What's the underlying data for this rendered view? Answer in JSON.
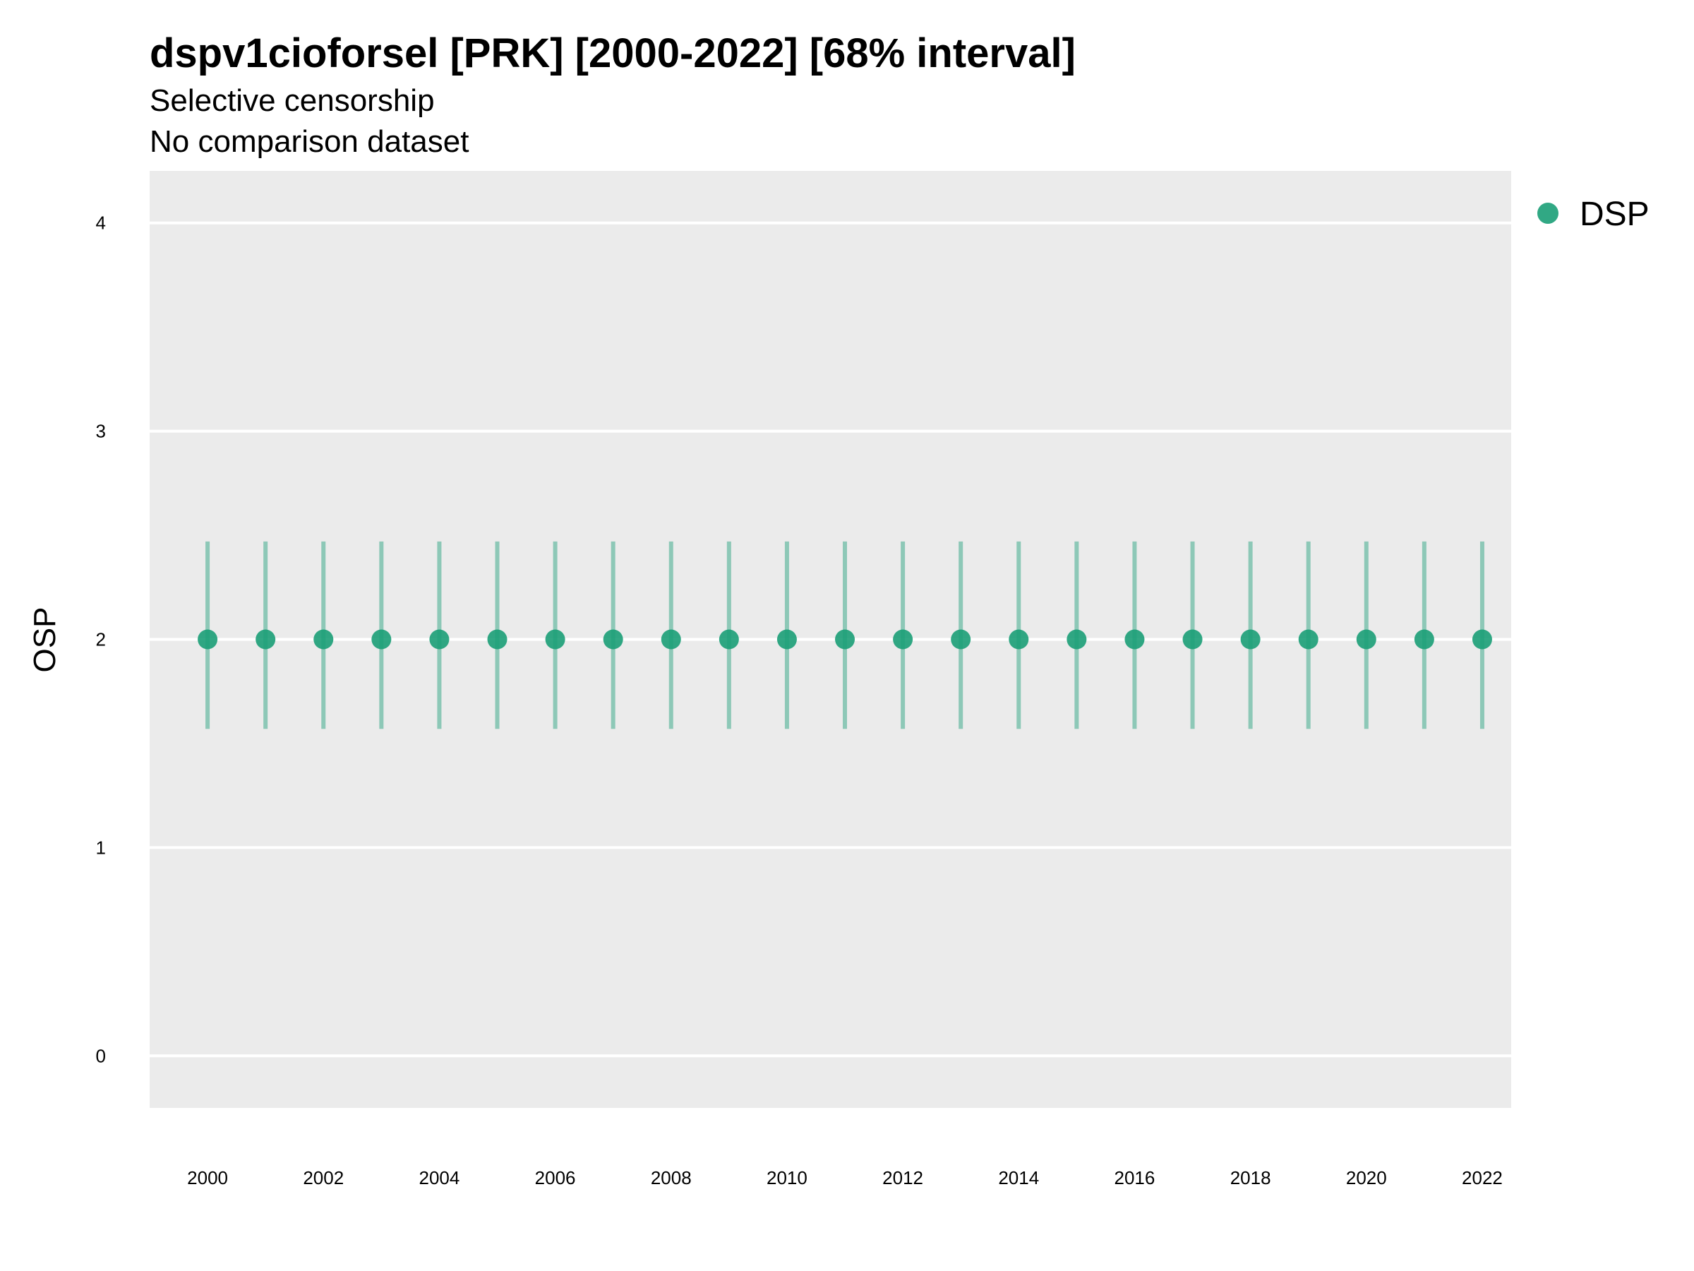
{
  "chart_data": {
    "type": "scatter",
    "title": "dspv1cioforsel [PRK] [2000-2022] [68% interval]",
    "subtitle": "Selective censorship",
    "caption_line": "No comparison dataset",
    "xlabel": "",
    "ylabel": "OSP",
    "x_ticks": [
      "2000",
      "2002",
      "2004",
      "2006",
      "2008",
      "2010",
      "2012",
      "2014",
      "2016",
      "2018",
      "2020",
      "2022"
    ],
    "y_ticks": [
      "0",
      "1",
      "2",
      "3",
      "4"
    ],
    "xlim": [
      1999,
      2022.5
    ],
    "ylim": [
      -0.25,
      4.25
    ],
    "grid": true,
    "legend_position": "right",
    "series": [
      {
        "name": "DSP",
        "color": "#1b9e77",
        "x": [
          2000,
          2001,
          2002,
          2003,
          2004,
          2005,
          2006,
          2007,
          2008,
          2009,
          2010,
          2011,
          2012,
          2013,
          2014,
          2015,
          2016,
          2017,
          2018,
          2019,
          2020,
          2021,
          2022
        ],
        "y": [
          2,
          2,
          2,
          2,
          2,
          2,
          2,
          2,
          2,
          2,
          2,
          2,
          2,
          2,
          2,
          2,
          2,
          2,
          2,
          2,
          2,
          2,
          2
        ],
        "lower": [
          1.57,
          1.57,
          1.57,
          1.57,
          1.57,
          1.57,
          1.57,
          1.57,
          1.57,
          1.57,
          1.57,
          1.57,
          1.57,
          1.57,
          1.57,
          1.57,
          1.57,
          1.57,
          1.57,
          1.57,
          1.57,
          1.57,
          1.57
        ],
        "upper": [
          2.47,
          2.47,
          2.47,
          2.47,
          2.47,
          2.47,
          2.47,
          2.47,
          2.47,
          2.47,
          2.47,
          2.47,
          2.47,
          2.47,
          2.47,
          2.47,
          2.47,
          2.47,
          2.47,
          2.47,
          2.47,
          2.47,
          2.47
        ]
      }
    ],
    "panel_color": "#ebebeb",
    "grid_color": "#ffffff"
  }
}
